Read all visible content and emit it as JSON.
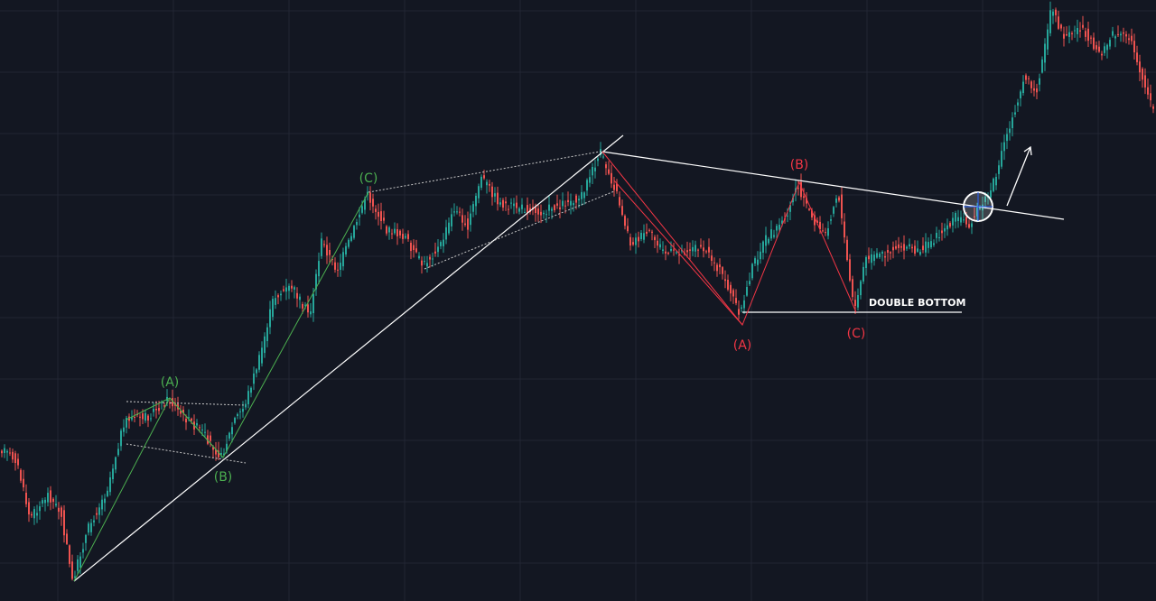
{
  "chart_data": {
    "type": "candlestick",
    "title": "",
    "xlabel": "",
    "ylabel": "",
    "axes_visible": false,
    "grid": true,
    "colors": {
      "background": "#131722",
      "grid": "#222633",
      "candle_up": "#26a69a",
      "candle_down": "#ef5350",
      "wave_green": "#4caf50",
      "wave_red": "#f23645",
      "trendline": "#ffffff"
    },
    "green_wave_labels": {
      "a": "(A)",
      "b": "(B)",
      "c": "(C)"
    },
    "red_wave_labels": {
      "a": "(A)",
      "b": "(B)",
      "c": "(C)"
    },
    "annotation": "DOUBLE BOTTOM",
    "breakout_marker": "circle",
    "direction_arrow": "up"
  }
}
